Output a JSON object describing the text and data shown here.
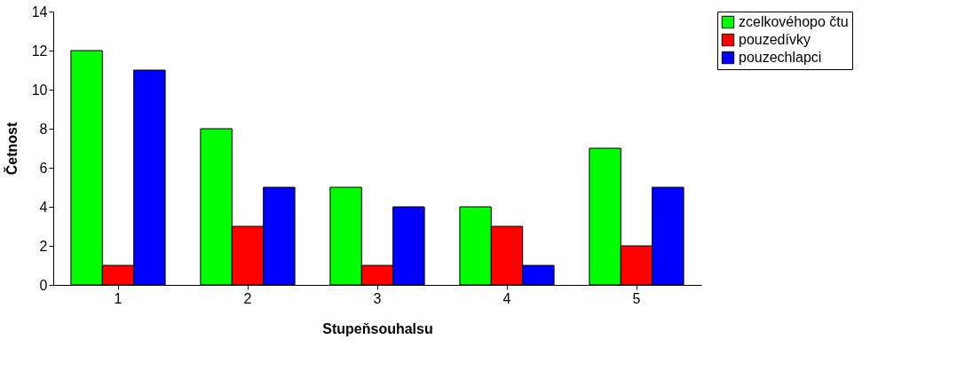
{
  "chart_data": {
    "type": "bar",
    "xlabel": "Stupeňsouhalsu",
    "ylabel": "Četnost",
    "categories": [
      "1",
      "2",
      "3",
      "4",
      "5"
    ],
    "series": [
      {
        "name": "zcelkovéhopo čtu",
        "color": "#00ff00",
        "values": [
          12,
          8,
          5,
          4,
          7
        ]
      },
      {
        "name": "pouzedívky",
        "color": "#ff0000",
        "values": [
          1,
          3,
          1,
          3,
          2
        ]
      },
      {
        "name": "pouzechlapci",
        "color": "#0000ff",
        "values": [
          11,
          5,
          4,
          1,
          5
        ]
      }
    ],
    "ylim": [
      0,
      14
    ],
    "yticks": [
      0,
      2,
      4,
      6,
      8,
      10,
      12,
      14
    ],
    "grid": false,
    "legend": "right"
  }
}
